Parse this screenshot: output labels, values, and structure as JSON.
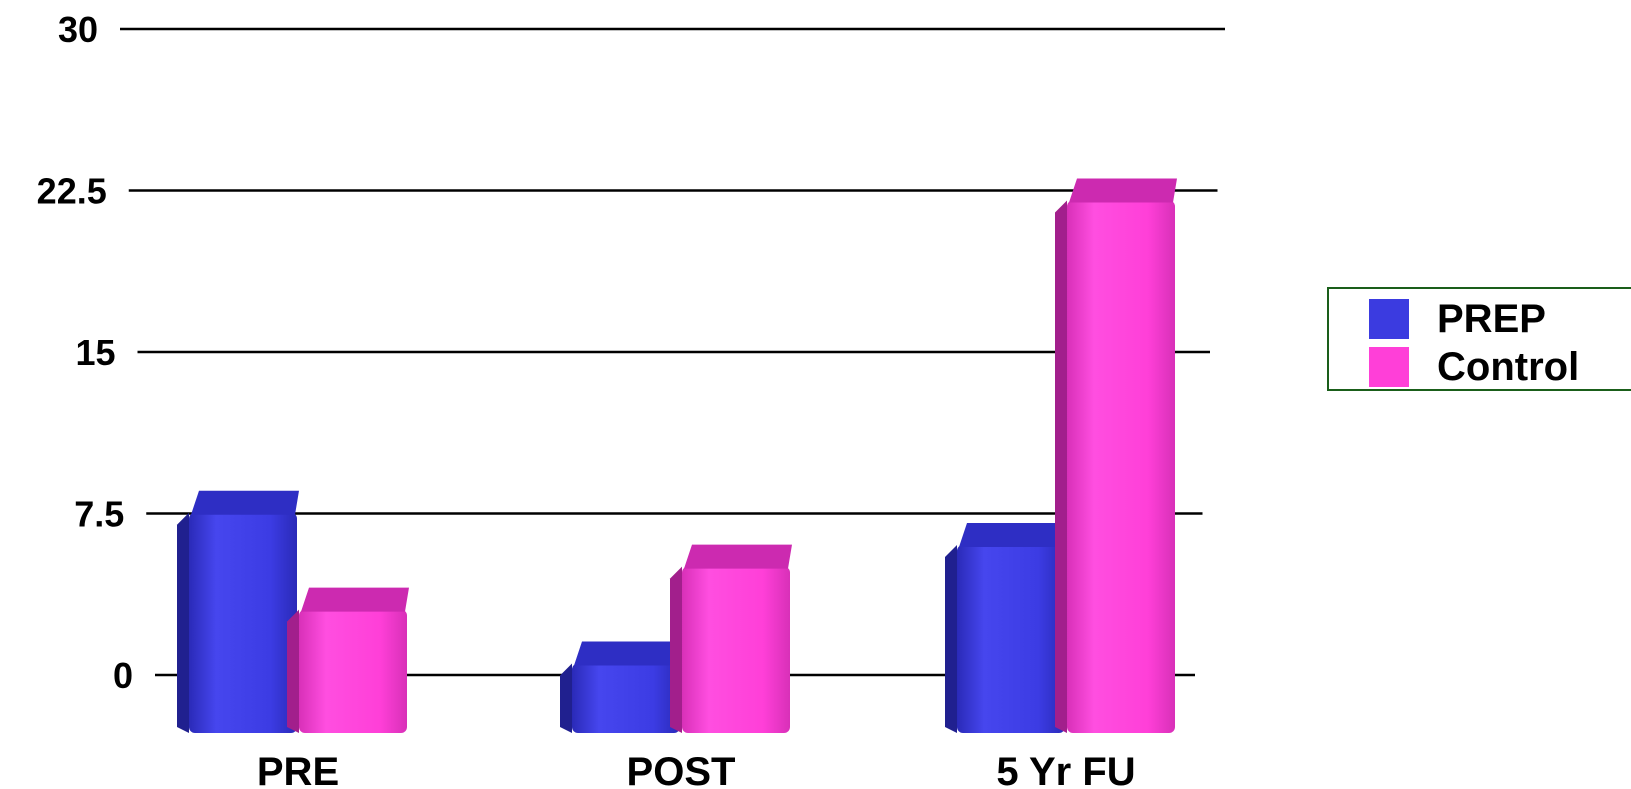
{
  "chart_data": {
    "type": "bar",
    "categories": [
      "PRE",
      "POST",
      "5 Yr FU"
    ],
    "series": [
      {
        "name": "PREP",
        "color": "#3b3be0",
        "values": [
          8,
          1,
          6.5
        ]
      },
      {
        "name": "Control",
        "color": "#ff3fd8",
        "values": [
          3.5,
          5.5,
          22.5
        ]
      }
    ],
    "y_ticks": [
      "0",
      "7.5",
      "15",
      "22.5",
      "30"
    ],
    "ylim": [
      0,
      30
    ],
    "grid": true,
    "legend_position": "right"
  }
}
